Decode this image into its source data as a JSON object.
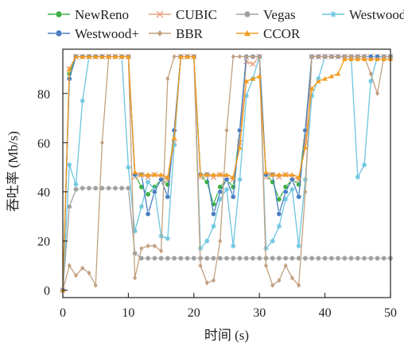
{
  "chart_data": {
    "type": "line",
    "xlabel": "时间 (s)",
    "ylabel": "吞吐率 (Mb/s)",
    "xlim": [
      0,
      50
    ],
    "ylim": [
      -3,
      98
    ],
    "xticks": [
      0,
      10,
      20,
      30,
      40,
      50
    ],
    "yticks": [
      0,
      20,
      40,
      60,
      80
    ],
    "grid": false,
    "legend_position": "top",
    "series": [
      {
        "name": "NewReno",
        "color": "#3cb043",
        "marker": "circle",
        "x": [
          0,
          1,
          2,
          3,
          4,
          5,
          6,
          7,
          8,
          9,
          10,
          11,
          12,
          13,
          14,
          15,
          16,
          17,
          18,
          19,
          20,
          21,
          22,
          23,
          24,
          25,
          26,
          27,
          28,
          29,
          30,
          31,
          32,
          33,
          34,
          35,
          36,
          37,
          38,
          39,
          40,
          41,
          42,
          43,
          44,
          45,
          46,
          47,
          48,
          49,
          50
        ],
        "y": [
          0,
          88,
          95,
          95,
          95,
          95,
          95,
          95,
          95,
          95,
          95,
          47,
          42,
          39,
          42,
          45,
          43,
          65,
          95,
          95,
          95,
          47,
          44,
          35,
          42,
          45,
          42,
          65,
          95,
          95,
          95,
          47,
          44,
          37,
          42,
          45,
          43,
          65,
          95,
          95,
          95,
          95,
          95,
          95,
          95,
          95,
          95,
          95,
          95,
          95,
          95
        ]
      },
      {
        "name": "CUBIC",
        "color": "#e8a07e",
        "marker": "x",
        "x": [
          0,
          1,
          2,
          3,
          4,
          5,
          6,
          7,
          8,
          9,
          10,
          11,
          12,
          13,
          14,
          15,
          16,
          17,
          18,
          19,
          20,
          21,
          22,
          23,
          24,
          25,
          26,
          27,
          28,
          29,
          30,
          31,
          32,
          33,
          34,
          35,
          36,
          37,
          38,
          39,
          40,
          41,
          42,
          43,
          44,
          45,
          46,
          47,
          48,
          49,
          50
        ],
        "y": [
          0,
          90,
          95,
          95,
          95,
          95,
          95,
          95,
          95,
          95,
          95,
          46,
          47,
          46,
          47,
          46,
          45,
          60,
          95,
          95,
          95,
          46,
          47,
          46,
          47,
          46,
          45,
          60,
          93,
          92,
          95,
          46,
          47,
          46,
          47,
          46,
          45,
          60,
          95,
          95,
          95,
          95,
          95,
          95,
          95,
          95,
          95,
          95,
          95,
          95,
          95
        ]
      },
      {
        "name": "Vegas",
        "color": "#a0a0a0",
        "marker": "circle",
        "x": [
          0,
          1,
          2,
          3,
          4,
          5,
          6,
          7,
          8,
          9,
          10,
          11,
          12,
          13,
          14,
          15,
          16,
          17,
          18,
          19,
          20,
          21,
          22,
          23,
          24,
          25,
          26,
          27,
          28,
          29,
          30,
          31,
          32,
          33,
          34,
          35,
          36,
          37,
          38,
          39,
          40,
          41,
          42,
          43,
          44,
          45,
          46,
          47,
          48,
          49,
          50
        ],
        "y": [
          0,
          34,
          41,
          41.5,
          41.5,
          41.5,
          41.5,
          41.5,
          41.5,
          41.5,
          41.5,
          15,
          13,
          13,
          13,
          13,
          13,
          13,
          13,
          13,
          13,
          13,
          13,
          13,
          13,
          13,
          13,
          13,
          13,
          13,
          13,
          13,
          13,
          13,
          13,
          13,
          13,
          13,
          13,
          13,
          13,
          13,
          13,
          13,
          13,
          13,
          13,
          13,
          13,
          13,
          13
        ]
      },
      {
        "name": "Westwood",
        "color": "#6cc6e0",
        "marker": "star",
        "x": [
          0,
          1,
          2,
          3,
          4,
          5,
          6,
          7,
          8,
          9,
          10,
          11,
          12,
          13,
          14,
          15,
          16,
          17,
          18,
          19,
          20,
          21,
          22,
          23,
          24,
          25,
          26,
          27,
          28,
          29,
          30,
          31,
          32,
          33,
          34,
          35,
          36,
          37,
          38,
          39,
          40,
          41,
          42,
          43,
          44,
          45,
          46,
          47,
          48,
          49,
          50
        ],
        "y": [
          0,
          51,
          43,
          77,
          95,
          95,
          95,
          95,
          95,
          95,
          50,
          24,
          34,
          44,
          41,
          22,
          21,
          59,
          95,
          95,
          95,
          17,
          20,
          26,
          37,
          41,
          18,
          45,
          79,
          86,
          95,
          17,
          20,
          26,
          37,
          41,
          18,
          45,
          79,
          86,
          95,
          95,
          95,
          95,
          95,
          46,
          51,
          85,
          95,
          95,
          95
        ]
      },
      {
        "name": "Westwood+",
        "color": "#4a7fc1",
        "marker": "circle",
        "x": [
          0,
          1,
          2,
          3,
          4,
          5,
          6,
          7,
          8,
          9,
          10,
          11,
          12,
          13,
          14,
          15,
          16,
          17,
          18,
          19,
          20,
          21,
          22,
          23,
          24,
          25,
          26,
          27,
          28,
          29,
          30,
          31,
          32,
          33,
          34,
          35,
          36,
          37,
          38,
          39,
          40,
          41,
          42,
          43,
          44,
          45,
          46,
          47,
          48,
          49,
          50
        ],
        "y": [
          0,
          86,
          95,
          95,
          95,
          95,
          95,
          95,
          95,
          95,
          95,
          47,
          47,
          31,
          40,
          45,
          38,
          65,
          95,
          95,
          95,
          47,
          47,
          31,
          40,
          45,
          38,
          65,
          95,
          95,
          95,
          47,
          47,
          31,
          40,
          45,
          38,
          65,
          95,
          95,
          95,
          95,
          95,
          95,
          95,
          95,
          95,
          95,
          95,
          95,
          95
        ]
      },
      {
        "name": "BBR",
        "color": "#c2a080",
        "marker": "diamond",
        "x": [
          0,
          1,
          2,
          3,
          4,
          5,
          6,
          7,
          8,
          9,
          10,
          11,
          12,
          13,
          14,
          15,
          16,
          17,
          18,
          19,
          20,
          21,
          22,
          23,
          24,
          25,
          26,
          27,
          28,
          29,
          30,
          31,
          32,
          33,
          34,
          35,
          36,
          37,
          38,
          39,
          40,
          41,
          42,
          43,
          44,
          45,
          46,
          47,
          48,
          49,
          50
        ],
        "y": [
          0,
          10,
          6,
          9,
          7,
          2,
          60,
          95,
          95,
          95,
          95,
          5,
          17,
          18,
          18,
          16,
          86,
          95,
          95,
          95,
          95,
          10,
          3,
          4,
          20,
          65,
          95,
          95,
          95,
          95,
          95,
          10,
          2,
          4,
          10,
          5,
          2,
          40,
          95,
          95,
          95,
          95,
          95,
          95,
          95,
          95,
          95,
          88,
          80,
          95,
          95
        ]
      },
      {
        "name": "CCOR",
        "color": "#f39c1f",
        "marker": "triangle",
        "x": [
          0,
          1,
          2,
          3,
          4,
          5,
          6,
          7,
          8,
          9,
          10,
          11,
          12,
          13,
          14,
          15,
          16,
          17,
          18,
          19,
          20,
          21,
          22,
          23,
          24,
          25,
          26,
          27,
          28,
          29,
          30,
          31,
          32,
          33,
          34,
          35,
          36,
          37,
          38,
          39,
          40,
          41,
          42,
          43,
          44,
          45,
          46,
          47,
          48,
          49,
          50
        ],
        "y": [
          0,
          90,
          95,
          95,
          95,
          95,
          95,
          95,
          95,
          95,
          95,
          48,
          47,
          47,
          47,
          47,
          46,
          62,
          95,
          95,
          95,
          47,
          47,
          47,
          47,
          47,
          46,
          58,
          85,
          86,
          87,
          48,
          47,
          47,
          47,
          47,
          46,
          58,
          82,
          85,
          86,
          87,
          88,
          94,
          94,
          94,
          94,
          94,
          94,
          94,
          94
        ]
      }
    ]
  }
}
